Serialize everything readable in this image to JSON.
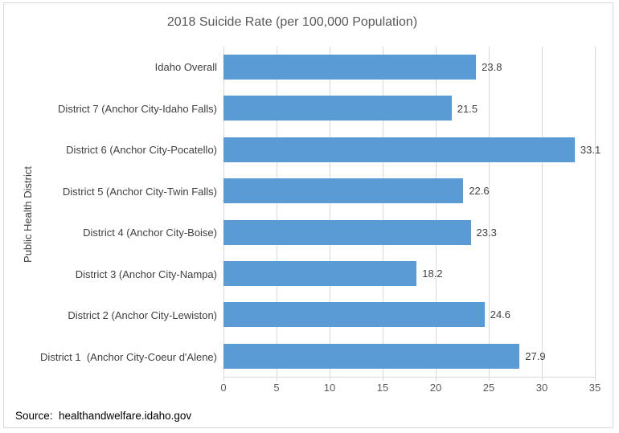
{
  "chart": {
    "title": "2018 Suicide Rate (per 100,000 Population)",
    "y_axis_title": "Public Health District",
    "source_note": "Source:  healthandwelfare.idaho.gov"
  },
  "colors": {
    "bar": "#5B9BD5",
    "gridline": "#D9D9D9",
    "frame_border": "#D9D9D9",
    "title_text": "#595959",
    "label_text": "#404040",
    "tick_text": "#595959",
    "source_text": "#000000"
  },
  "chart_data": {
    "type": "bar",
    "orientation": "horizontal",
    "title": "2018 Suicide Rate (per 100,000 Population)",
    "xlabel": "",
    "ylabel": "Public Health District",
    "categories": [
      "Idaho Overall",
      "District 7 (Anchor City-Idaho Falls)",
      "District 6 (Anchor City-Pocatello)",
      "District 5 (Anchor City-Twin Falls)",
      "District 4 (Anchor City-Boise)",
      "District 3 (Anchor City-Nampa)",
      "District 2 (Anchor City-Lewiston)",
      "District 1  (Anchor City-Coeur d'Alene)"
    ],
    "values": [
      23.8,
      21.5,
      33.1,
      22.6,
      23.3,
      18.2,
      24.6,
      27.9
    ],
    "value_labels": [
      "23.8",
      "21.5",
      "33.1",
      "22.6",
      "23.3",
      "18.2",
      "24.6",
      "27.9"
    ],
    "xlim": [
      0,
      35
    ],
    "xticks": [
      0,
      5,
      10,
      15,
      20,
      25,
      30,
      35
    ],
    "grid": true,
    "legend": "none",
    "data_labels": "outside-end"
  }
}
